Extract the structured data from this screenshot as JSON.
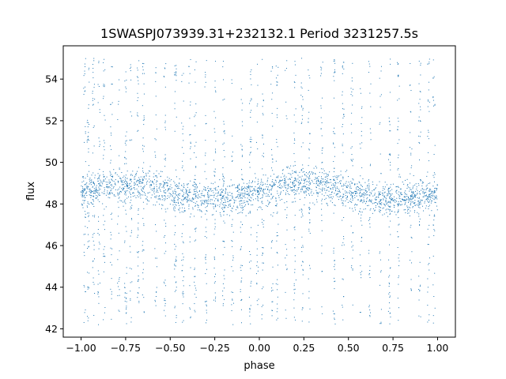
{
  "chart_data": {
    "type": "scatter",
    "title": "1SWASPJ073939.31+232132.1 Period 3231257.5s",
    "xlabel": "phase",
    "ylabel": "flux",
    "xlim": [
      -1.1,
      1.1
    ],
    "ylim": [
      41.6,
      55.6
    ],
    "xticks": [
      -1.0,
      -0.75,
      -0.5,
      -0.25,
      0.0,
      0.25,
      0.5,
      0.75,
      1.0
    ],
    "xtick_labels": [
      "−1.00",
      "−0.75",
      "−0.50",
      "−0.25",
      "0.00",
      "0.25",
      "0.50",
      "0.75",
      "1.00"
    ],
    "yticks": [
      42,
      44,
      46,
      48,
      50,
      52,
      54
    ],
    "ytick_labels": [
      "42",
      "44",
      "46",
      "48",
      "50",
      "52",
      "54"
    ],
    "grid": false,
    "legend": "none",
    "marker_color": "#1f77b4",
    "series": [
      {
        "core_band_flux": [
          47.5,
          49.5
        ],
        "typical_flux": 48.6,
        "observation_columns_phase": [
          -0.98,
          -0.96,
          -0.93,
          -0.9,
          -0.87,
          -0.83,
          -0.79,
          -0.75,
          -0.72,
          -0.68,
          -0.65,
          -0.58,
          -0.53,
          -0.47,
          -0.43,
          -0.39,
          -0.36,
          -0.3,
          -0.25,
          -0.2,
          -0.15,
          -0.1,
          -0.05,
          -0.01,
          0.02,
          0.07,
          0.1,
          0.15,
          0.2,
          0.24,
          0.28,
          0.35,
          0.42,
          0.47,
          0.52,
          0.57,
          0.62,
          0.68,
          0.73,
          0.78,
          0.85,
          0.9,
          0.95,
          0.98
        ]
      }
    ]
  }
}
